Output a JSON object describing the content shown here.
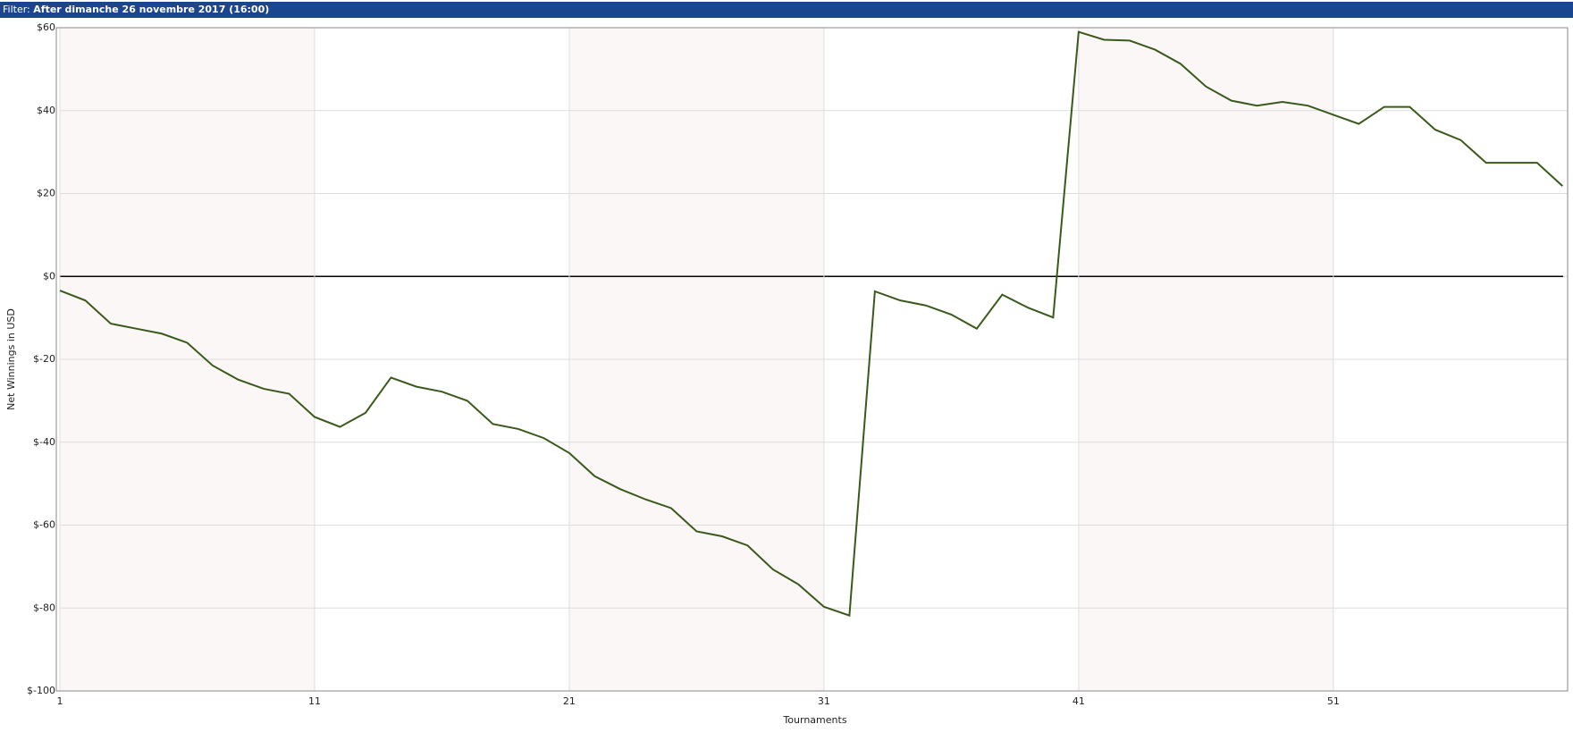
{
  "header": {
    "label": "Filter:",
    "value": "After dimanche 26 novembre 2017 (16:00)"
  },
  "chart_data": {
    "type": "line",
    "x_label": "Tournaments",
    "y_label": "Net Winnings in USD",
    "x": [
      1,
      2,
      3,
      4,
      5,
      6,
      7,
      8,
      9,
      10,
      11,
      12,
      13,
      14,
      15,
      16,
      17,
      18,
      19,
      20,
      21,
      22,
      23,
      24,
      25,
      26,
      27,
      28,
      29,
      30,
      31,
      32,
      33,
      34,
      35,
      36,
      37,
      38,
      39,
      40,
      41,
      42,
      43,
      44,
      45,
      46,
      47,
      48,
      49,
      50,
      51,
      52,
      53,
      54,
      55,
      56,
      57,
      58,
      59,
      60
    ],
    "series": [
      {
        "name": "Net Winnings",
        "color": "#3a5a1c",
        "values": [
          -3.4,
          -5.8,
          -11.4,
          -12.6,
          -13.8,
          -16.0,
          -21.5,
          -24.9,
          -27.1,
          -28.3,
          -33.9,
          -36.3,
          -32.9,
          -24.4,
          -26.6,
          -27.8,
          -30.0,
          -35.6,
          -36.8,
          -39.0,
          -42.6,
          -48.2,
          -51.3,
          -53.8,
          -55.9,
          -61.5,
          -62.7,
          -64.9,
          -70.7,
          -74.3,
          -79.7,
          -81.8,
          -3.6,
          -5.8,
          -7.0,
          -9.2,
          -12.6,
          -4.4,
          -7.5,
          -9.9,
          59.0,
          57.1,
          56.9,
          54.7,
          51.3,
          45.8,
          42.4,
          41.2,
          42.1,
          41.2,
          39.0,
          36.8,
          40.9,
          40.9,
          35.4,
          32.9,
          27.4,
          27.4,
          27.4,
          21.8
        ]
      }
    ],
    "xlim": [
      1,
      60.2
    ],
    "xticks": [
      1,
      11,
      21,
      31,
      41,
      51
    ],
    "ylim": [
      -100,
      60
    ],
    "yticks": [
      {
        "value": 60,
        "label": "$60"
      },
      {
        "value": 40,
        "label": "$40"
      },
      {
        "value": 20,
        "label": "$20"
      },
      {
        "value": 0,
        "label": "$0"
      },
      {
        "value": -20,
        "label": "$-20"
      },
      {
        "value": -40,
        "label": "$-40"
      },
      {
        "value": -60,
        "label": "$-60"
      },
      {
        "value": -80,
        "label": "$-80"
      },
      {
        "value": -100,
        "label": "$-100"
      }
    ],
    "grid": true
  }
}
